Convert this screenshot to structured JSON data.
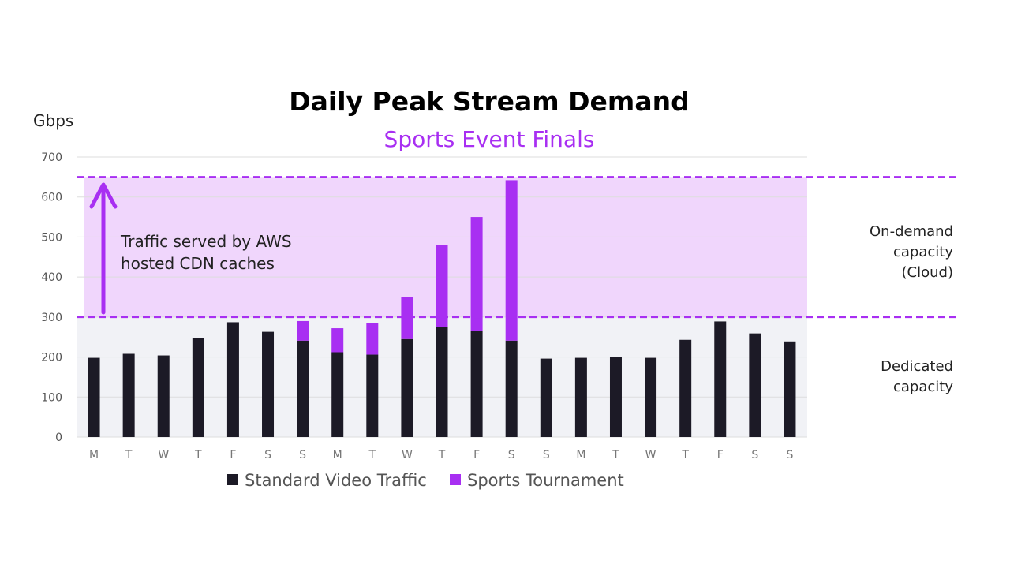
{
  "chart_data": {
    "type": "bar",
    "stacked": true,
    "title": "Daily Peak Stream Demand",
    "subtitle": "Sports Event Finals",
    "ylabel": "Gbps",
    "ylim": [
      0,
      700
    ],
    "yticks": [
      0,
      100,
      200,
      300,
      400,
      500,
      600,
      700
    ],
    "categories": [
      "M",
      "T",
      "W",
      "T",
      "F",
      "S",
      "S",
      "M",
      "T",
      "W",
      "T",
      "F",
      "S",
      "S",
      "M",
      "T",
      "W",
      "T",
      "F",
      "S",
      "S"
    ],
    "series": [
      {
        "name": "Standard Video Traffic",
        "color": "#1c1a26",
        "values": [
          198,
          208,
          204,
          247,
          287,
          263,
          241,
          212,
          206,
          245,
          275,
          265,
          241,
          196,
          198,
          200,
          198,
          243,
          289,
          259,
          239
        ]
      },
      {
        "name": "Sports Tournament",
        "color": "#a82ff2",
        "values": [
          0,
          0,
          0,
          0,
          0,
          0,
          49,
          60,
          78,
          105,
          205,
          285,
          401,
          0,
          0,
          0,
          0,
          0,
          0,
          0,
          0
        ]
      }
    ],
    "capacity_lines": {
      "dedicated_limit": 300,
      "on_demand_limit": 650,
      "line_color": "#a82ff2",
      "on_demand_fill": "#f0d6fc",
      "dedicated_fill": "#f1f2f6"
    },
    "zone_labels": {
      "on_demand": [
        "On-demand",
        "capacity",
        "(Cloud)"
      ],
      "dedicated": [
        "Dedicated",
        "capacity"
      ]
    },
    "annotation": {
      "lines": [
        "Traffic served by AWS",
        "hosted CDN caches"
      ],
      "arrow_color": "#a82ff2"
    },
    "grid": true,
    "legend_position": "bottom"
  },
  "colors": {
    "subtitle": "#a82ff2",
    "gridline": "#dddddd"
  }
}
